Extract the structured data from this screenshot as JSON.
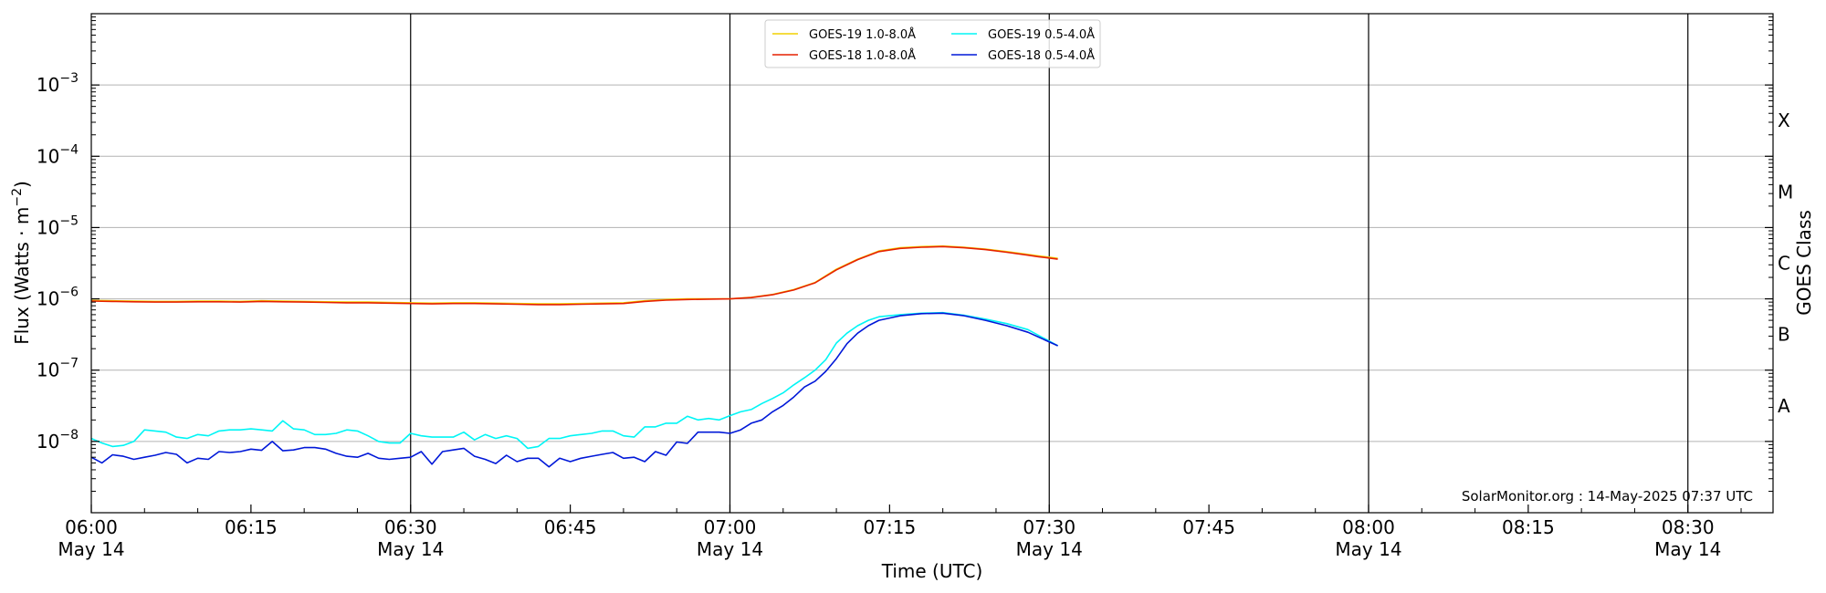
{
  "chart_data": {
    "type": "line",
    "xlabel": "Time (UTC)",
    "ylabel": "Flux (Watts · m",
    "ylabel_sup": "−2",
    "ylabel_close": ")",
    "y2label": "GOES Class",
    "yscale": "log",
    "ylim": [
      1e-09,
      0.01
    ],
    "xlim_minutes_of_day": [
      360,
      518
    ],
    "credit": "SolarMonitor.org : 14-May-2025 07:37 UTC",
    "x_ticks": [
      {
        "t": 360,
        "time": "06:00",
        "date": "May 14"
      },
      {
        "t": 375,
        "time": "06:15",
        "date": ""
      },
      {
        "t": 390,
        "time": "06:30",
        "date": "May 14"
      },
      {
        "t": 405,
        "time": "06:45",
        "date": ""
      },
      {
        "t": 420,
        "time": "07:00",
        "date": "May 14"
      },
      {
        "t": 435,
        "time": "07:15",
        "date": ""
      },
      {
        "t": 450,
        "time": "07:30",
        "date": "May 14"
      },
      {
        "t": 465,
        "time": "07:45",
        "date": ""
      },
      {
        "t": 480,
        "time": "08:00",
        "date": "May 14"
      },
      {
        "t": 495,
        "time": "08:15",
        "date": ""
      },
      {
        "t": 510,
        "time": "08:30",
        "date": "May 14"
      }
    ],
    "vertical_lines_at": [
      390,
      420,
      450,
      480,
      510
    ],
    "y_ticks": [
      {
        "exp": -8,
        "base": "10",
        "sup": "−8"
      },
      {
        "exp": -7,
        "base": "10",
        "sup": "−7"
      },
      {
        "exp": -6,
        "base": "10",
        "sup": "−6"
      },
      {
        "exp": -5,
        "base": "10",
        "sup": "−5"
      },
      {
        "exp": -4,
        "base": "10",
        "sup": "−4"
      },
      {
        "exp": -3,
        "base": "10",
        "sup": "−3"
      }
    ],
    "goes_classes": [
      {
        "label": "A",
        "exp": -7.5
      },
      {
        "label": "B",
        "exp": -6.5
      },
      {
        "label": "C",
        "exp": -5.5
      },
      {
        "label": "M",
        "exp": -4.5
      },
      {
        "label": "X",
        "exp": -3.5
      }
    ],
    "legend": [
      {
        "name": "GOES-19 1.0-8.0Å",
        "color": "#f2d000"
      },
      {
        "name": "GOES-19 0.5-4.0Å",
        "color": "#00f5f5"
      },
      {
        "name": "GOES-18 1.0-8.0Å",
        "color": "#e62000"
      },
      {
        "name": "GOES-18 0.5-4.0Å",
        "color": "#0018d8"
      }
    ],
    "series": [
      {
        "name": "GOES-19 1.0-8.0Å",
        "color": "#f2d000",
        "x": [
          360,
          362,
          364,
          366,
          368,
          370,
          372,
          374,
          376,
          378,
          380,
          382,
          384,
          386,
          388,
          390,
          392,
          394,
          396,
          398,
          400,
          402,
          404,
          406,
          408,
          410,
          412,
          414,
          416,
          418,
          420,
          422,
          424,
          426,
          428,
          430,
          432,
          434,
          436,
          438,
          440,
          442,
          444,
          446,
          448,
          449,
          450.8
        ],
        "y": [
          9.5e-07,
          9.4e-07,
          9.3e-07,
          9.2e-07,
          9.2e-07,
          9.3e-07,
          9.3e-07,
          9.2e-07,
          9.4e-07,
          9.3e-07,
          9.2e-07,
          9.1e-07,
          9e-07,
          9e-07,
          8.9e-07,
          8.8e-07,
          8.7e-07,
          8.8e-07,
          8.8e-07,
          8.7e-07,
          8.6e-07,
          8.5e-07,
          8.5e-07,
          8.6e-07,
          8.7e-07,
          8.8e-07,
          9.4e-07,
          9.8e-07,
          1e-06,
          1e-06,
          1e-06,
          1.05e-06,
          1.15e-06,
          1.35e-06,
          1.7e-06,
          2.6e-06,
          3.6e-06,
          4.7e-06,
          5.2e-06,
          5.4e-06,
          5.5e-06,
          5.3e-06,
          5e-06,
          4.6e-06,
          4.2e-06,
          4e-06,
          3.7e-06
        ]
      },
      {
        "name": "GOES-18 1.0-8.0Å",
        "color": "#e62000",
        "x": [
          360,
          362,
          364,
          366,
          368,
          370,
          372,
          374,
          376,
          378,
          380,
          382,
          384,
          386,
          388,
          390,
          392,
          394,
          396,
          398,
          400,
          402,
          404,
          406,
          408,
          410,
          412,
          414,
          416,
          418,
          420,
          422,
          424,
          426,
          428,
          430,
          432,
          434,
          436,
          438,
          440,
          442,
          444,
          446,
          448,
          449,
          450.8
        ],
        "y": [
          9.3e-07,
          9.2e-07,
          9.1e-07,
          9e-07,
          9e-07,
          9.1e-07,
          9.1e-07,
          9e-07,
          9.2e-07,
          9.1e-07,
          9e-07,
          8.9e-07,
          8.8e-07,
          8.8e-07,
          8.7e-07,
          8.6e-07,
          8.5e-07,
          8.6e-07,
          8.6e-07,
          8.5e-07,
          8.4e-07,
          8.3e-07,
          8.3e-07,
          8.4e-07,
          8.5e-07,
          8.6e-07,
          9.2e-07,
          9.6e-07,
          9.8e-07,
          9.9e-07,
          1e-06,
          1.04e-06,
          1.14e-06,
          1.33e-06,
          1.68e-06,
          2.55e-06,
          3.55e-06,
          4.6e-06,
          5.1e-06,
          5.3e-06,
          5.4e-06,
          5.2e-06,
          4.9e-06,
          4.5e-06,
          4.1e-06,
          3.9e-06,
          3.6e-06
        ]
      },
      {
        "name": "GOES-19 0.5-4.0Å",
        "color": "#00f5f5",
        "x": [
          360,
          361,
          362,
          363,
          364,
          365,
          366,
          367,
          368,
          369,
          370,
          371,
          372,
          373,
          374,
          375,
          376,
          377,
          378,
          379,
          380,
          381,
          382,
          383,
          384,
          385,
          386,
          387,
          388,
          389,
          390,
          391,
          392,
          393,
          394,
          395,
          396,
          397,
          398,
          399,
          400,
          401,
          402,
          403,
          404,
          405,
          406,
          407,
          408,
          409,
          410,
          411,
          412,
          413,
          414,
          415,
          416,
          417,
          418,
          419,
          420,
          421,
          422,
          423,
          424,
          425,
          426,
          427,
          428,
          429,
          430,
          431,
          432,
          433,
          434,
          436,
          438,
          440,
          442,
          444,
          446,
          448,
          450.8
        ],
        "y": [
          1.1e-08,
          9.5e-09,
          8.5e-09,
          8.8e-09,
          1e-08,
          1.45e-08,
          1.4e-08,
          1.35e-08,
          1.15e-08,
          1.1e-08,
          1.25e-08,
          1.2e-08,
          1.4e-08,
          1.45e-08,
          1.45e-08,
          1.5e-08,
          1.45e-08,
          1.4e-08,
          1.95e-08,
          1.5e-08,
          1.45e-08,
          1.25e-08,
          1.25e-08,
          1.3e-08,
          1.45e-08,
          1.4e-08,
          1.2e-08,
          1e-08,
          9.5e-09,
          9.5e-09,
          1.3e-08,
          1.2e-08,
          1.15e-08,
          1.15e-08,
          1.15e-08,
          1.35e-08,
          1.05e-08,
          1.25e-08,
          1.1e-08,
          1.2e-08,
          1.1e-08,
          8e-09,
          8.5e-09,
          1.1e-08,
          1.1e-08,
          1.2e-08,
          1.25e-08,
          1.3e-08,
          1.4e-08,
          1.4e-08,
          1.2e-08,
          1.15e-08,
          1.6e-08,
          1.6e-08,
          1.8e-08,
          1.8e-08,
          2.25e-08,
          2e-08,
          2.1e-08,
          2e-08,
          2.3e-08,
          2.6e-08,
          2.8e-08,
          3.4e-08,
          4e-08,
          4.8e-08,
          6.2e-08,
          7.8e-08,
          1e-07,
          1.4e-07,
          2.4e-07,
          3.3e-07,
          4.2e-07,
          5e-07,
          5.6e-07,
          6e-07,
          6.3e-07,
          6.4e-07,
          5.9e-07,
          5.2e-07,
          4.5e-07,
          3.7e-07,
          2.2e-07
        ]
      },
      {
        "name": "GOES-18 0.5-4.0Å",
        "color": "#0018d8",
        "x": [
          360,
          361,
          362,
          363,
          364,
          365,
          366,
          367,
          368,
          369,
          370,
          371,
          372,
          373,
          374,
          375,
          376,
          377,
          378,
          379,
          380,
          381,
          382,
          383,
          384,
          385,
          386,
          387,
          388,
          389,
          390,
          391,
          392,
          393,
          394,
          395,
          396,
          397,
          398,
          399,
          400,
          401,
          402,
          403,
          404,
          405,
          406,
          407,
          408,
          409,
          410,
          411,
          412,
          413,
          414,
          415,
          416,
          417,
          418,
          419,
          420,
          421,
          422,
          423,
          424,
          425,
          426,
          427,
          428,
          429,
          430,
          431,
          432,
          433,
          434,
          436,
          438,
          440,
          442,
          444,
          446,
          448,
          450.8
        ],
        "y": [
          6e-09,
          5e-09,
          6.5e-09,
          6.2e-09,
          5.6e-09,
          6e-09,
          6.4e-09,
          7e-09,
          6.6e-09,
          5e-09,
          5.8e-09,
          5.6e-09,
          7.2e-09,
          7e-09,
          7.2e-09,
          7.8e-09,
          7.5e-09,
          1e-08,
          7.4e-09,
          7.6e-09,
          8.2e-09,
          8.2e-09,
          7.8e-09,
          6.8e-09,
          6.2e-09,
          6e-09,
          6.8e-09,
          5.8e-09,
          5.6e-09,
          5.8e-09,
          6e-09,
          7.2e-09,
          4.8e-09,
          7.2e-09,
          7.6e-09,
          8e-09,
          6.2e-09,
          5.6e-09,
          4.9e-09,
          6.4e-09,
          5.2e-09,
          5.8e-09,
          5.8e-09,
          4.4e-09,
          5.8e-09,
          5.2e-09,
          5.8e-09,
          6.2e-09,
          6.6e-09,
          7e-09,
          5.8e-09,
          6e-09,
          5.2e-09,
          7.2e-09,
          6.4e-09,
          9.8e-09,
          9.4e-09,
          1.35e-08,
          1.35e-08,
          1.35e-08,
          1.3e-08,
          1.45e-08,
          1.8e-08,
          2e-08,
          2.6e-08,
          3.2e-08,
          4.2e-08,
          5.8e-08,
          7e-08,
          9.6e-08,
          1.45e-07,
          2.35e-07,
          3.3e-07,
          4.2e-07,
          5e-07,
          5.8e-07,
          6.2e-07,
          6.3e-07,
          5.8e-07,
          5e-07,
          4.2e-07,
          3.4e-07,
          2.2e-07
        ]
      }
    ]
  }
}
